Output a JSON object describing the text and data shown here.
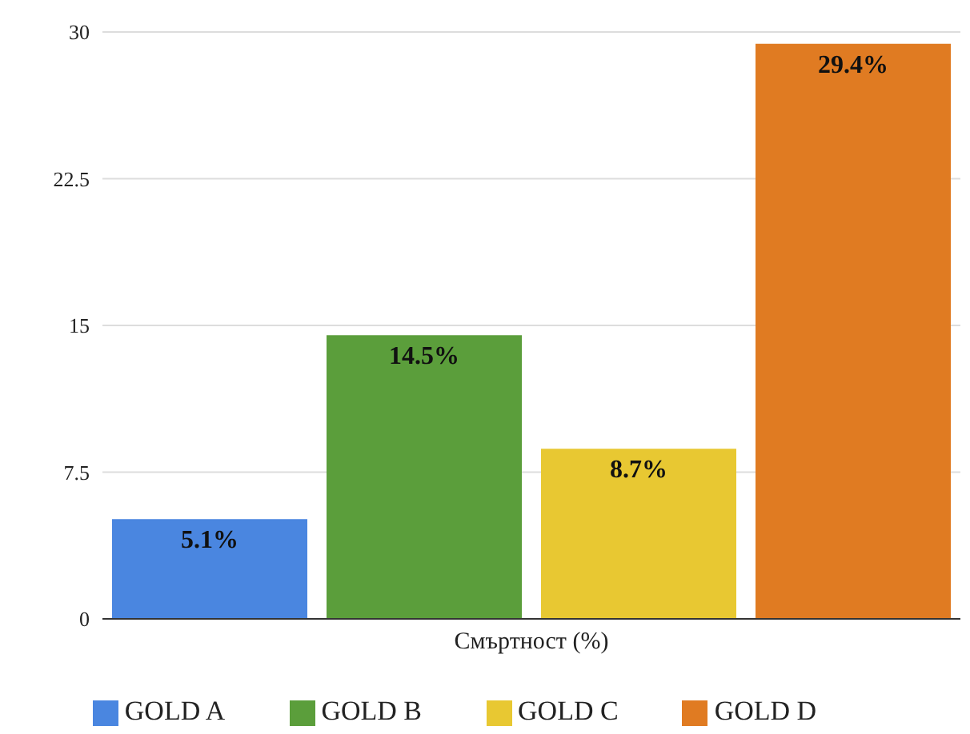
{
  "chart_data": {
    "type": "bar",
    "categories": [
      "Смъртност (%)"
    ],
    "series": [
      {
        "name": "GOLD A",
        "color": "#4a86e0",
        "values": [
          5.1
        ],
        "value_labels": [
          "5.1%"
        ]
      },
      {
        "name": "GOLD B",
        "color": "#5b9e3b",
        "values": [
          14.5
        ],
        "value_labels": [
          "14.5%"
        ]
      },
      {
        "name": "GOLD C",
        "color": "#e8c832",
        "values": [
          8.7
        ],
        "value_labels": [
          "8.7%"
        ]
      },
      {
        "name": "GOLD D",
        "color": "#e07b22",
        "values": [
          29.4
        ],
        "value_labels": [
          "29.4%"
        ]
      }
    ],
    "ylim": [
      0,
      30
    ],
    "yticks": [
      0,
      7.5,
      15,
      22.5,
      30
    ],
    "grid": "y",
    "legend": "bottom"
  }
}
